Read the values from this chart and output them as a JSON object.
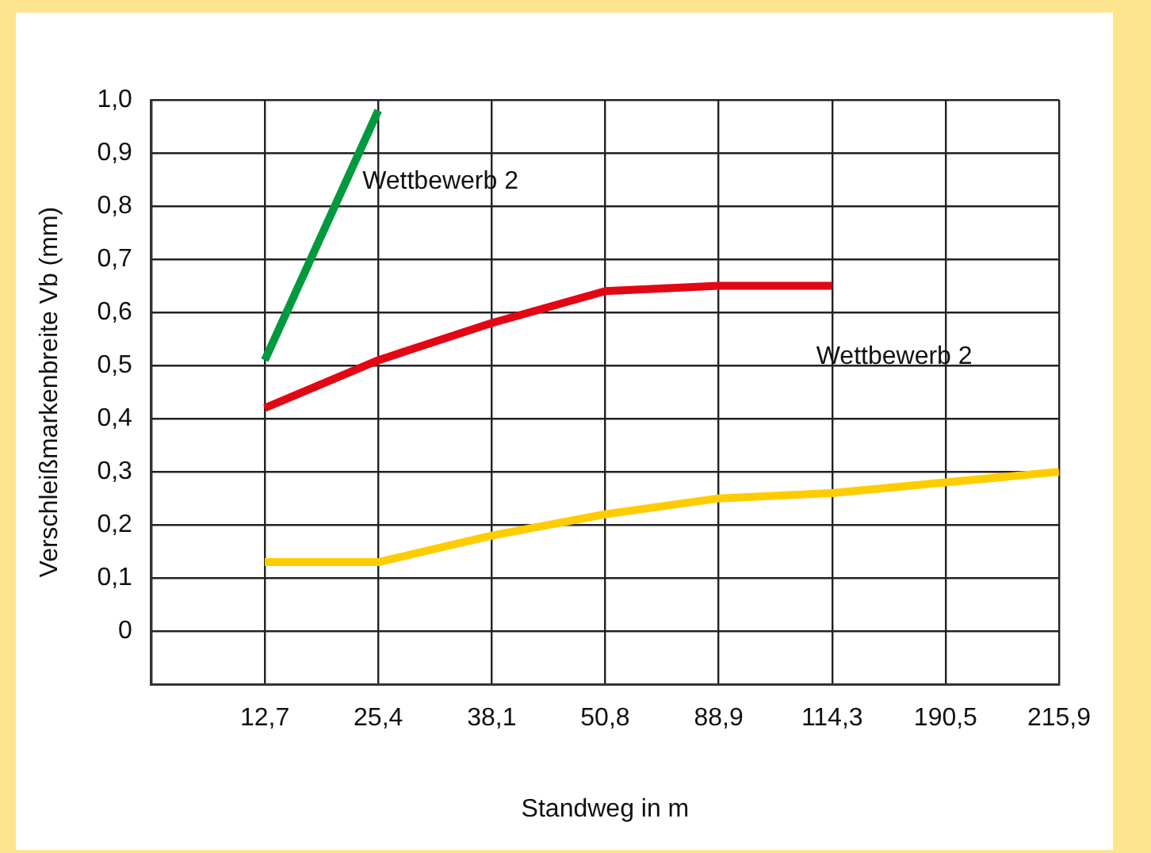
{
  "chart_data": {
    "type": "line",
    "xlabel": "Standweg in m",
    "ylabel": "Verschleißmarkenbreite Vb (mm)",
    "categories": [
      null,
      "12,7",
      "25,4",
      "38,1",
      "50,8",
      "88,9",
      "114,3",
      "190,5",
      "215,9"
    ],
    "series": [
      {
        "name": "Wettbewerb 2",
        "color": "#009a3e",
        "values": [
          null,
          0.51,
          0.98,
          null,
          null,
          null,
          null,
          null,
          null
        ]
      },
      {
        "name": "Wettbewerb 2",
        "color": "#e30613",
        "values": [
          null,
          0.42,
          0.51,
          0.58,
          0.64,
          0.65,
          0.65,
          null,
          null
        ]
      },
      {
        "color": "#ffcc00",
        "values": [
          null,
          0.13,
          0.13,
          0.18,
          0.22,
          0.25,
          0.26,
          0.28,
          0.3
        ]
      }
    ],
    "ylim": [
      -0.1,
      1.0
    ],
    "yticks": [
      {
        "value": 0,
        "label": "0"
      },
      {
        "value": 0.1,
        "label": "0,1"
      },
      {
        "value": 0.2,
        "label": "0,2"
      },
      {
        "value": 0.3,
        "label": "0,3"
      },
      {
        "value": 0.4,
        "label": "0,4"
      },
      {
        "value": 0.5,
        "label": "0,5"
      },
      {
        "value": 0.6,
        "label": "0,6"
      },
      {
        "value": 0.7,
        "label": "0,7"
      },
      {
        "value": 0.8,
        "label": "0,8"
      },
      {
        "value": 0.9,
        "label": "0,9"
      },
      {
        "value": 1.0,
        "label": "1,0"
      }
    ],
    "grid": true,
    "legend": false,
    "marker": "none",
    "line_style": "solid"
  }
}
